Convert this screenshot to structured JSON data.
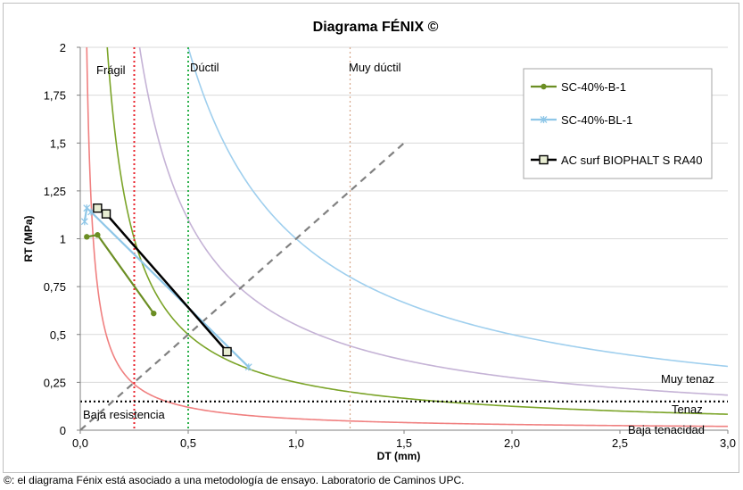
{
  "chart_data": {
    "type": "line",
    "title": "Diagrama FÉNIX ©",
    "xlabel": "DT (mm)",
    "ylabel": "RT (MPa)",
    "xlim": [
      0,
      3.0
    ],
    "ylim": [
      0,
      2
    ],
    "x_ticks": [
      0,
      0.5,
      1.0,
      1.5,
      2.0,
      2.5,
      3.0
    ],
    "x_tick_labels": [
      "0,0",
      "0,5",
      "1,0",
      "1,5",
      "2,0",
      "2,5",
      "3,0"
    ],
    "y_ticks": [
      0,
      0.25,
      0.5,
      0.75,
      1,
      1.25,
      1.5,
      1.75,
      2
    ],
    "y_tick_labels": [
      "0",
      "0,25",
      "0,5",
      "0,75",
      "1",
      "1,25",
      "1,5",
      "1,75",
      "2"
    ],
    "grid": "horizontal",
    "legend_position": "right",
    "series": [
      {
        "name": "SC-40%-B-1",
        "color": "#6b8e23",
        "marker": "circle",
        "x": [
          0.03,
          0.08,
          0.34
        ],
        "y": [
          1.01,
          1.02,
          0.61
        ]
      },
      {
        "name": "SC-40%-BL-1",
        "color": "#8fc7e8",
        "marker": "x",
        "x": [
          0.02,
          0.03,
          0.05,
          0.78
        ],
        "y": [
          1.09,
          1.16,
          1.14,
          0.33
        ]
      },
      {
        "name": "AC surf BIOPHALT S RA40",
        "color": "#000000",
        "marker": "square",
        "x": [
          0.08,
          0.12,
          0.68
        ],
        "y": [
          1.16,
          1.13,
          0.41
        ]
      }
    ],
    "reference_curves": [
      {
        "k": 0.06,
        "color": "#f08080",
        "label": "Baja tenacidad"
      },
      {
        "k": 0.25,
        "color": "#7ba428",
        "label": "Tenaz"
      },
      {
        "k": 0.55,
        "color": "#c5b3d6",
        "label": ""
      },
      {
        "k": 1.0,
        "color": "#9fcfee",
        "label": "Muy tenaz"
      }
    ],
    "reference_lines": [
      {
        "orientation": "vertical",
        "x": 0.25,
        "color": "#e8232c",
        "label": "Frágil"
      },
      {
        "orientation": "vertical",
        "x": 0.5,
        "color": "#2fb24d",
        "label": "Dúctil"
      },
      {
        "orientation": "vertical",
        "x": 1.25,
        "color": "#d7a78a",
        "label": "Muy dúctil"
      },
      {
        "orientation": "horizontal",
        "y": 0.15,
        "color": "#000000",
        "label": "Baja resistencia"
      },
      {
        "orientation": "diagonal",
        "from": [
          0,
          0
        ],
        "to": [
          1.5,
          1.5
        ],
        "color": "#808080",
        "label": ""
      }
    ]
  },
  "footnote": "©: el diagrama Fénix está asociado a una metodología de ensayo. Laboratorio de Caminos UPC."
}
